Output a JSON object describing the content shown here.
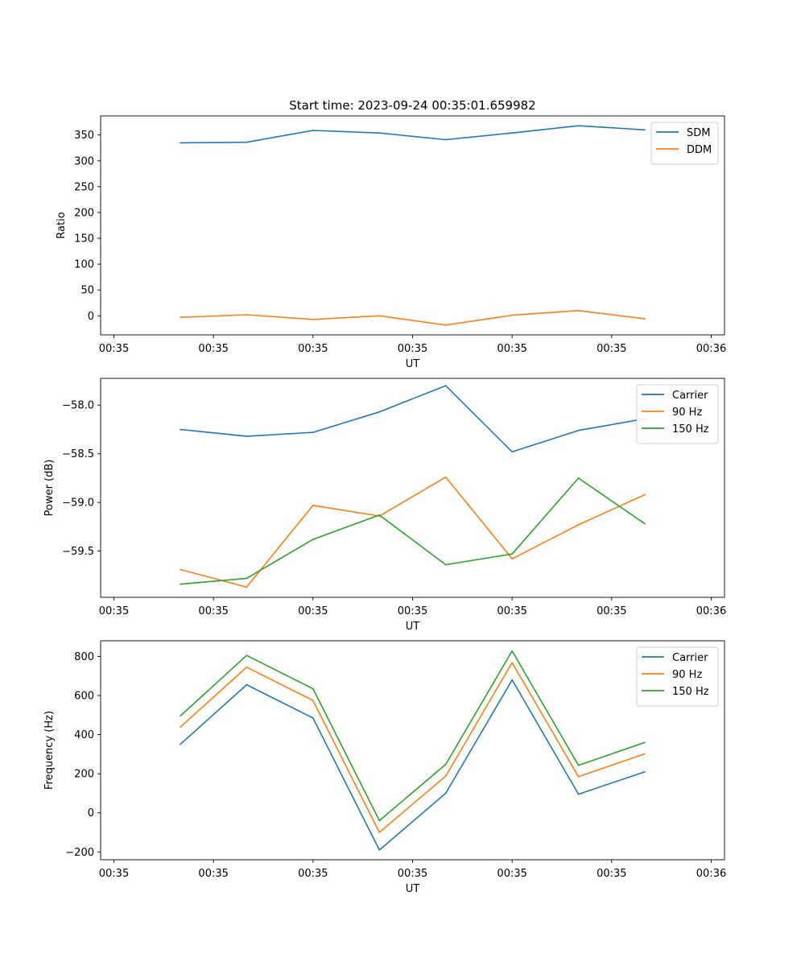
{
  "chart_data": [
    {
      "type": "line",
      "title": "Start time: 2023-09-24 00:35:01.659982",
      "xlabel": "UT",
      "ylabel": "Ratio",
      "x": [
        0.5,
        1.0,
        1.5,
        2.0,
        2.5,
        3.0,
        3.5,
        4.0
      ],
      "xlim": [
        -0.1,
        4.6
      ],
      "xticks": [
        0,
        0.75,
        1.5,
        2.25,
        3.0,
        3.75,
        4.5
      ],
      "xtick_labels": [
        "00:35",
        "00:35",
        "00:35",
        "00:35",
        "00:35",
        "00:35",
        "00:36"
      ],
      "ylim": [
        -37,
        387
      ],
      "yticks": [
        0,
        50,
        100,
        150,
        200,
        250,
        300,
        350
      ],
      "ytick_labels": [
        "0",
        "50",
        "100",
        "150",
        "200",
        "250",
        "300",
        "350"
      ],
      "legend": "top-right",
      "series": [
        {
          "name": "SDM",
          "color": "#1f77b4",
          "values": [
            335,
            336,
            359,
            354,
            341,
            354,
            368,
            360
          ]
        },
        {
          "name": "DDM",
          "color": "#ff7f0e",
          "values": [
            -3,
            2,
            -7,
            0,
            -18,
            1,
            10,
            -6
          ]
        }
      ]
    },
    {
      "type": "line",
      "title": "",
      "xlabel": "UT",
      "ylabel": "Power (dB)",
      "x": [
        0.5,
        1.0,
        1.5,
        2.0,
        2.5,
        3.0,
        3.5,
        4.0
      ],
      "xlim": [
        -0.1,
        4.6
      ],
      "xticks": [
        0,
        0.75,
        1.5,
        2.25,
        3.0,
        3.75,
        4.5
      ],
      "xtick_labels": [
        "00:35",
        "00:35",
        "00:35",
        "00:35",
        "00:35",
        "00:35",
        "00:36"
      ],
      "ylim": [
        -59.975,
        -57.725
      ],
      "yticks": [
        -59.5,
        -59.0,
        -58.5,
        -58.0
      ],
      "ytick_labels": [
        "−59.5",
        "−59.0",
        "−58.5",
        "−58.0"
      ],
      "legend": "top-right",
      "series": [
        {
          "name": "Carrier",
          "color": "#1f77b4",
          "values": [
            -58.25,
            -58.32,
            -58.28,
            -58.07,
            -57.8,
            -58.48,
            -58.26,
            -58.14
          ]
        },
        {
          "name": "90 Hz",
          "color": "#ff7f0e",
          "values": [
            -59.69,
            -59.87,
            -59.03,
            -59.14,
            -58.74,
            -59.58,
            -59.23,
            -58.92
          ]
        },
        {
          "name": "150 Hz",
          "color": "#2ca02c",
          "values": [
            -59.84,
            -59.78,
            -59.38,
            -59.13,
            -59.64,
            -59.53,
            -58.75,
            -59.22
          ]
        }
      ]
    },
    {
      "type": "line",
      "title": "",
      "xlabel": "UT",
      "ylabel": "Frequency (Hz)",
      "x": [
        0.5,
        1.0,
        1.5,
        2.0,
        2.5,
        3.0,
        3.5,
        4.0
      ],
      "xlim": [
        -0.1,
        4.6
      ],
      "xticks": [
        0,
        0.75,
        1.5,
        2.25,
        3.0,
        3.75,
        4.5
      ],
      "xtick_labels": [
        "00:35",
        "00:35",
        "00:35",
        "00:35",
        "00:35",
        "00:35",
        "00:36"
      ],
      "ylim": [
        -240,
        880
      ],
      "yticks": [
        -200,
        0,
        200,
        400,
        600,
        800
      ],
      "ytick_labels": [
        "−200",
        "0",
        "200",
        "400",
        "600",
        "800"
      ],
      "legend": "top-right",
      "series": [
        {
          "name": "Carrier",
          "color": "#1f77b4",
          "values": [
            350,
            655,
            485,
            -190,
            100,
            680,
            95,
            210
          ]
        },
        {
          "name": "90 Hz",
          "color": "#ff7f0e",
          "values": [
            438,
            745,
            575,
            -100,
            188,
            768,
            185,
            302
          ]
        },
        {
          "name": "150 Hz",
          "color": "#2ca02c",
          "values": [
            495,
            805,
            635,
            -40,
            248,
            828,
            243,
            360
          ]
        }
      ]
    }
  ]
}
